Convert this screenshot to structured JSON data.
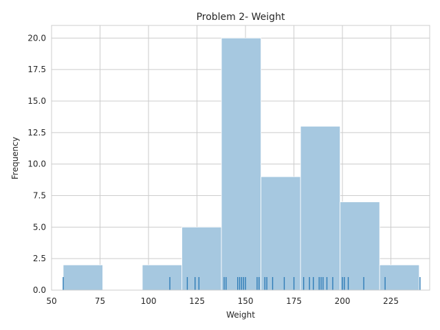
{
  "chart_data": {
    "type": "bar",
    "title": "Problem 2- Weight",
    "xlabel": "Weight",
    "ylabel": "Frequency",
    "xlim": [
      50,
      245
    ],
    "ylim": [
      0,
      21
    ],
    "x_ticks": [
      {
        "value": 50,
        "label": "50"
      },
      {
        "value": 75,
        "label": "75"
      },
      {
        "value": 100,
        "label": "100"
      },
      {
        "value": 125,
        "label": "125"
      },
      {
        "value": 150,
        "label": "150"
      },
      {
        "value": 175,
        "label": "175"
      },
      {
        "value": 200,
        "label": "200"
      },
      {
        "value": 225,
        "label": "225"
      }
    ],
    "y_ticks": [
      {
        "value": 0,
        "label": "0.0"
      },
      {
        "value": 2.5,
        "label": "2.5"
      },
      {
        "value": 5,
        "label": "5.0"
      },
      {
        "value": 7.5,
        "label": "7.5"
      },
      {
        "value": 10,
        "label": "10.0"
      },
      {
        "value": 12.5,
        "label": "12.5"
      },
      {
        "value": 15,
        "label": "15.0"
      },
      {
        "value": 17.5,
        "label": "17.5"
      },
      {
        "value": 20,
        "label": "20.0"
      }
    ],
    "bins": [
      {
        "start": 56.0,
        "end": 76.4,
        "count": 2
      },
      {
        "start": 76.4,
        "end": 96.8,
        "count": 0
      },
      {
        "start": 96.8,
        "end": 117.2,
        "count": 2
      },
      {
        "start": 117.2,
        "end": 137.6,
        "count": 5
      },
      {
        "start": 137.6,
        "end": 158.0,
        "count": 20
      },
      {
        "start": 158.0,
        "end": 178.4,
        "count": 9
      },
      {
        "start": 178.4,
        "end": 198.8,
        "count": 13
      },
      {
        "start": 198.8,
        "end": 219.2,
        "count": 7
      },
      {
        "start": 219.2,
        "end": 239.6,
        "count": 2
      }
    ],
    "rug": [
      56,
      111,
      120,
      124,
      126,
      139,
      140,
      146,
      147,
      148,
      149,
      150,
      156,
      157,
      160,
      161,
      164,
      170,
      175,
      180,
      183,
      185,
      188,
      189,
      190,
      192,
      195,
      200,
      201,
      203,
      211,
      222,
      240
    ],
    "grid": true,
    "colors": {
      "bar": "#a6c8e0",
      "rug": "#2d7bb6",
      "grid": "#cccccc"
    }
  }
}
